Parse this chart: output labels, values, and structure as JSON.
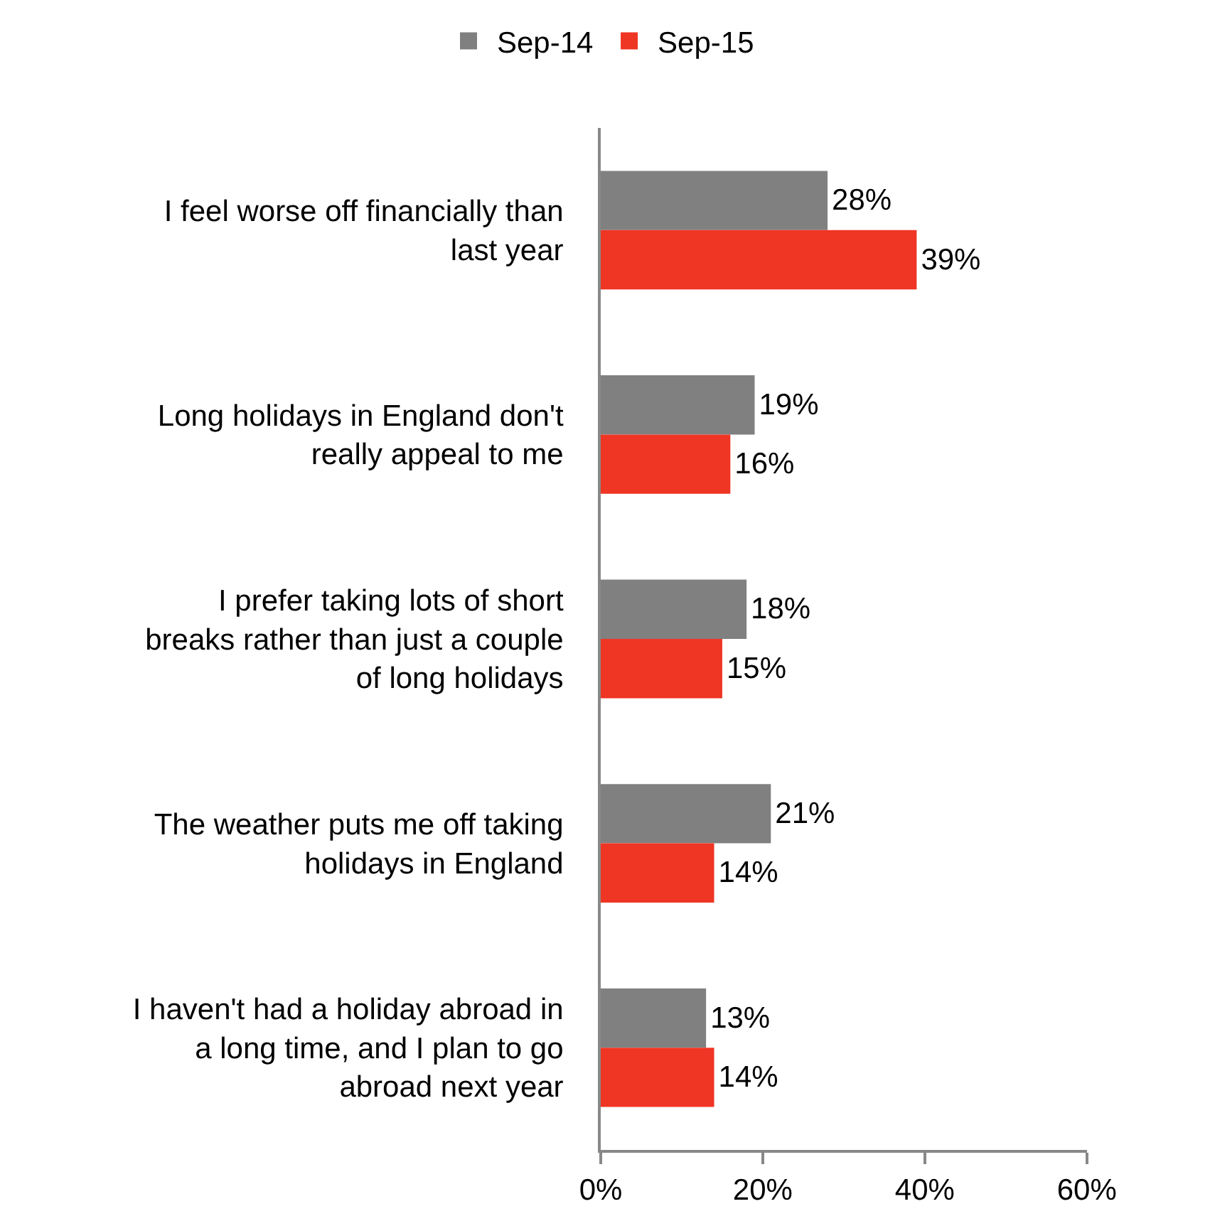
{
  "chart_data": {
    "type": "bar",
    "orientation": "horizontal",
    "categories": [
      "I feel worse off financially than last year",
      "Long holidays in England don't really appeal to me",
      "I prefer taking lots of short breaks rather than just a couple of long holidays",
      "The weather puts me off taking holidays in England",
      "I haven't had a holiday abroad in a long time, and I plan to go abroad next year"
    ],
    "series": [
      {
        "name": "Sep-14",
        "color": "#808080",
        "values": [
          28,
          19,
          18,
          21,
          13
        ],
        "value_labels": [
          "28%",
          "19%",
          "18%",
          "21%",
          "13%"
        ]
      },
      {
        "name": "Sep-15",
        "color": "#ef3524",
        "values": [
          39,
          16,
          15,
          14,
          14
        ],
        "value_labels": [
          "39%",
          "16%",
          "15%",
          "14%",
          "14%"
        ]
      }
    ],
    "xlim": [
      0,
      60
    ],
    "xticks": [
      {
        "value": 0,
        "label": "0%"
      },
      {
        "value": 20,
        "label": "20%"
      },
      {
        "value": 40,
        "label": "40%"
      },
      {
        "value": 60,
        "label": "60%"
      }
    ],
    "legend": "top"
  }
}
